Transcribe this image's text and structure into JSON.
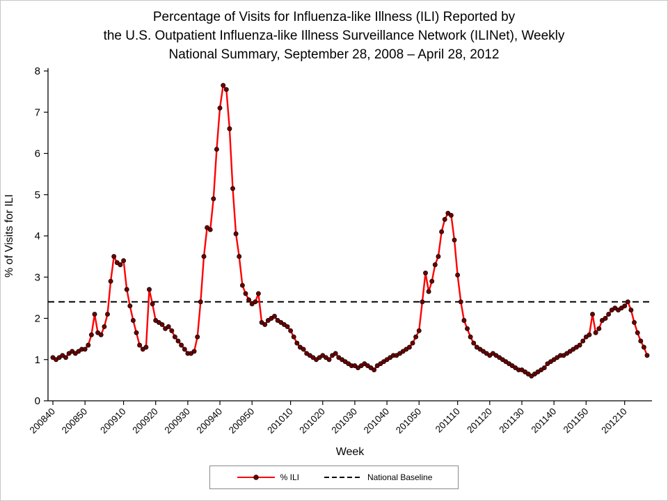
{
  "title": {
    "lines": [
      "Percentage of Visits for Influenza-like Illness (ILI) Reported by",
      "the U.S. Outpatient Influenza-like Illness Surveillance Network (ILINet), Weekly",
      "National Summary, September 28, 2008 – April 28, 2012"
    ]
  },
  "chart_data": {
    "type": "line",
    "title": "Percentage of Visits for Influenza-like Illness (ILI) Reported by the U.S. Outpatient Influenza-like Illness Surveillance Network (ILINet), Weekly National Summary, September 28, 2008 – April 28, 2012",
    "xlabel": "Week",
    "ylabel": "% of Visits for ILI",
    "ylim": [
      0,
      8
    ],
    "yticks": [
      0,
      1,
      2,
      3,
      4,
      5,
      6,
      7,
      8
    ],
    "xtick_labels": [
      "200840",
      "200850",
      "200910",
      "200920",
      "200930",
      "200940",
      "200950",
      "201010",
      "201020",
      "201030",
      "201040",
      "201050",
      "201110",
      "201120",
      "201130",
      "201140",
      "201150",
      "201210"
    ],
    "grid": false,
    "legend_position": "bottom",
    "series": [
      {
        "name": "% ILI",
        "type": "line-markers",
        "color": "#FF0000",
        "marker_color": "#6B0000",
        "week_ranges": [
          {
            "year": 2008,
            "from": 40,
            "to": 52
          },
          {
            "year": 2009,
            "from": 1,
            "to": 52
          },
          {
            "year": 2010,
            "from": 1,
            "to": 52
          },
          {
            "year": 2011,
            "from": 1,
            "to": 52
          },
          {
            "year": 2012,
            "from": 1,
            "to": 17
          }
        ],
        "values": [
          1.05,
          1.0,
          1.05,
          1.1,
          1.05,
          1.15,
          1.2,
          1.15,
          1.2,
          1.25,
          1.25,
          1.35,
          1.6,
          2.1,
          1.65,
          1.6,
          1.8,
          2.1,
          2.9,
          3.5,
          3.35,
          3.3,
          3.4,
          2.7,
          2.3,
          1.95,
          1.65,
          1.35,
          1.25,
          1.3,
          2.7,
          2.35,
          1.95,
          1.9,
          1.85,
          1.75,
          1.8,
          1.7,
          1.55,
          1.45,
          1.35,
          1.25,
          1.15,
          1.15,
          1.2,
          1.55,
          2.4,
          3.5,
          4.2,
          4.15,
          4.9,
          6.1,
          7.1,
          7.65,
          7.55,
          6.6,
          5.15,
          4.05,
          3.5,
          2.8,
          2.6,
          2.45,
          2.35,
          2.4,
          2.6,
          1.9,
          1.85,
          1.95,
          2.0,
          2.05,
          1.95,
          1.9,
          1.85,
          1.8,
          1.7,
          1.55,
          1.4,
          1.3,
          1.25,
          1.15,
          1.1,
          1.05,
          1.0,
          1.05,
          1.1,
          1.05,
          1.0,
          1.1,
          1.15,
          1.05,
          1.0,
          0.95,
          0.9,
          0.85,
          0.85,
          0.8,
          0.85,
          0.9,
          0.85,
          0.8,
          0.75,
          0.85,
          0.9,
          0.95,
          1.0,
          1.05,
          1.1,
          1.1,
          1.15,
          1.2,
          1.25,
          1.3,
          1.4,
          1.55,
          1.7,
          2.4,
          3.1,
          2.65,
          2.9,
          3.3,
          3.5,
          4.1,
          4.4,
          4.55,
          4.5,
          3.9,
          3.05,
          2.4,
          1.95,
          1.75,
          1.55,
          1.4,
          1.3,
          1.25,
          1.2,
          1.15,
          1.1,
          1.15,
          1.1,
          1.05,
          1.0,
          0.95,
          0.9,
          0.85,
          0.8,
          0.75,
          0.75,
          0.7,
          0.65,
          0.6,
          0.65,
          0.7,
          0.75,
          0.8,
          0.9,
          0.95,
          1.0,
          1.05,
          1.1,
          1.1,
          1.15,
          1.2,
          1.25,
          1.3,
          1.35,
          1.45,
          1.55,
          1.6,
          2.1,
          1.65,
          1.75,
          1.95,
          2.0,
          2.1,
          2.2,
          2.25,
          2.2,
          2.25,
          2.3,
          2.4,
          2.2,
          1.9,
          1.65,
          1.45,
          1.3,
          1.1
        ]
      },
      {
        "name": "National Baseline",
        "type": "hline-dashed",
        "color": "#000000",
        "value": 2.4
      }
    ]
  }
}
